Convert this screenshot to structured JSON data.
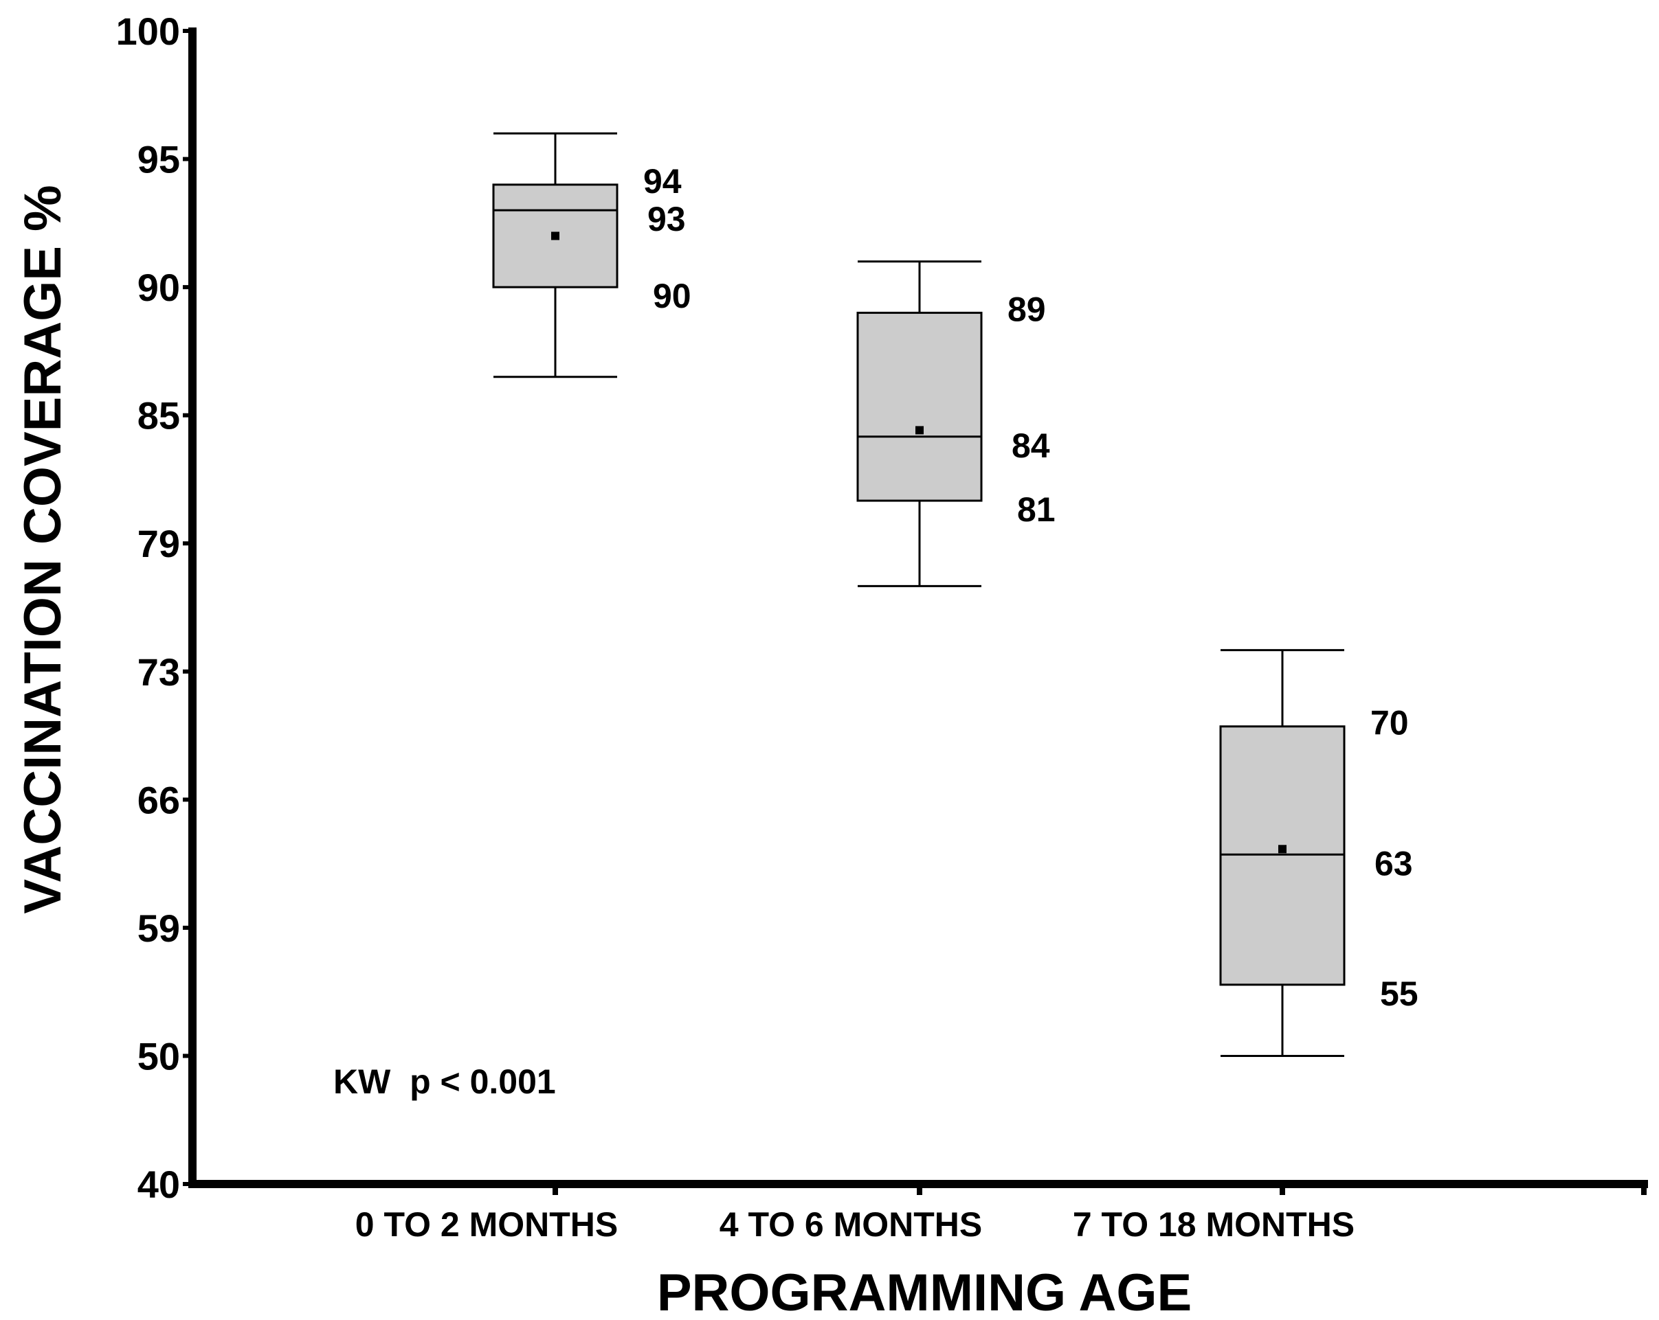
{
  "chart_data": {
    "type": "box",
    "title": "",
    "xlabel": "PROGRAMMING AGE",
    "ylabel": "VACCINATION COVERAGE %",
    "yticks": [
      40,
      50,
      59,
      66,
      73,
      79,
      85,
      90,
      95,
      100
    ],
    "annotation": "KW  p < 0.001",
    "categories": [
      "0 TO 2 MONTHS",
      "4 TO 6 MONTHS",
      "7 TO 18 MONTHS"
    ],
    "boxes": [
      {
        "category": "0 TO 2 MONTHS",
        "whisker_low": 86.5,
        "q1": 90,
        "median": 93,
        "q3": 94,
        "whisker_high": 96,
        "mean": 92,
        "labels": {
          "q3": "94",
          "median": "93",
          "q1": "90"
        }
      },
      {
        "category": "4 TO 6 MONTHS",
        "whisker_low": 77,
        "q1": 81,
        "median": 84,
        "q3": 89,
        "whisker_high": 91,
        "mean": 84.3,
        "labels": {
          "q3": "89",
          "median": "84",
          "q1": "81"
        }
      },
      {
        "category": "7 TO 18 MONTHS",
        "whisker_low": 50,
        "q1": 55,
        "median": 63,
        "q3": 70,
        "whisker_high": 74,
        "mean": 63.3,
        "labels": {
          "q3": "70",
          "median": "63",
          "q1": "55"
        }
      }
    ],
    "colors": {
      "box_fill": "#cccccc",
      "stroke": "#000000",
      "background": "#ffffff"
    }
  }
}
